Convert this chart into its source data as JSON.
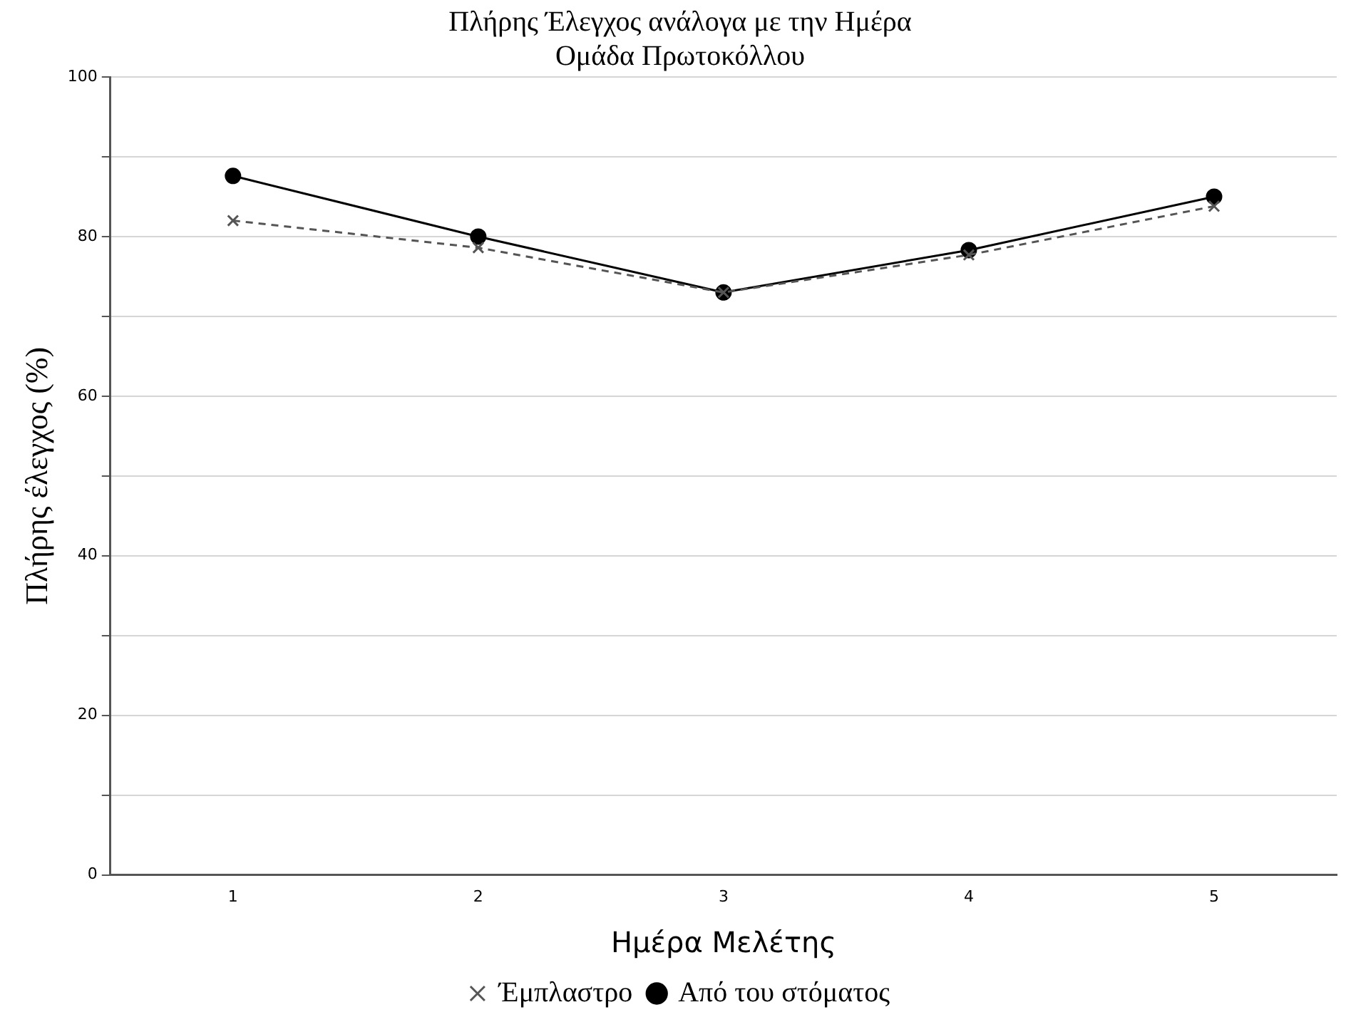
{
  "chart_data": {
    "type": "line",
    "title": "Πλήρης Έλεγχος ανάλογα με την Ημέρα",
    "subtitle": "Ομάδα Πρωτοκόλλου",
    "xlabel": "Ημέρα Μελέτης",
    "ylabel": "Πλήρης έλεγχος (%)",
    "categories": [
      "1",
      "2",
      "3",
      "4",
      "5"
    ],
    "series": [
      {
        "name": "Από του στόματος",
        "color": "#000000",
        "values": [
          87.6,
          80,
          73,
          78.3,
          85
        ],
        "marker": "circle",
        "line_style": "solid"
      },
      {
        "name": "Έμπλαστρο",
        "color": "#555555",
        "values": [
          82,
          78.6,
          73,
          77.7,
          83.8
        ],
        "marker": "cross",
        "line_style": "dashed"
      }
    ],
    "ylim": [
      0,
      100
    ],
    "yticks": [
      0,
      {
        "value": 10,
        "label": null
      },
      20,
      {
        "value": 30,
        "label": null
      },
      40,
      {
        "value": 50,
        "label": null
      },
      60,
      {
        "value": 70,
        "label": null
      },
      80,
      {
        "value": 90,
        "label": null
      },
      100
    ],
    "grid": "y",
    "legend": "bottom"
  }
}
